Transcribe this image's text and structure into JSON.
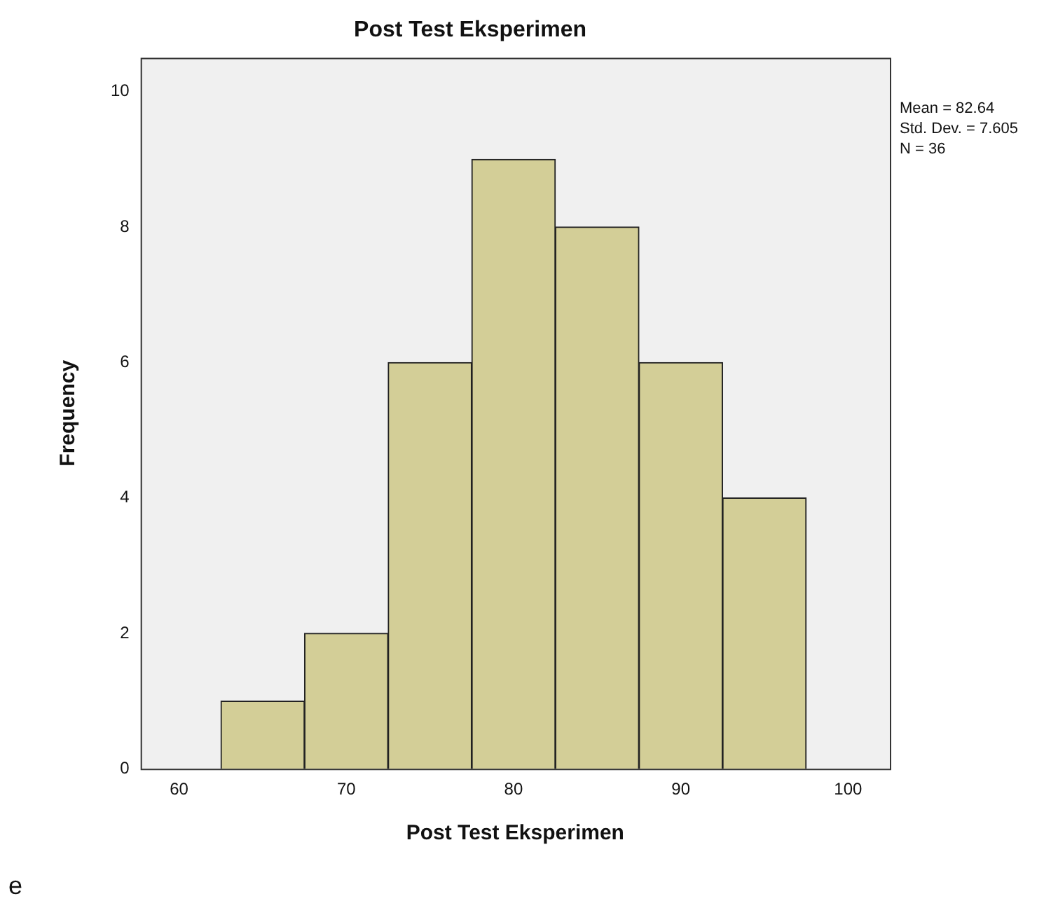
{
  "chart_data": {
    "type": "histogram",
    "title": "Post Test Eksperimen",
    "xlabel": "Post Test Eksperimen",
    "ylabel": "Frequency",
    "bins": [
      62.5,
      67.5,
      72.5,
      77.5,
      82.5,
      87.5,
      92.5,
      97.5
    ],
    "values": [
      1,
      2,
      6,
      9,
      8,
      6,
      4
    ],
    "color": "#d3ce97",
    "xlim": [
      57.7,
      102.5
    ],
    "xticks": [
      60,
      70,
      80,
      90,
      100
    ],
    "ylim": [
      0,
      10.5
    ],
    "yticks": [
      0,
      2,
      4,
      6,
      8,
      10
    ],
    "annotations": [
      "Mean = 82.64",
      "Std. Dev. = 7.605",
      "N = 36",
      "e"
    ]
  }
}
